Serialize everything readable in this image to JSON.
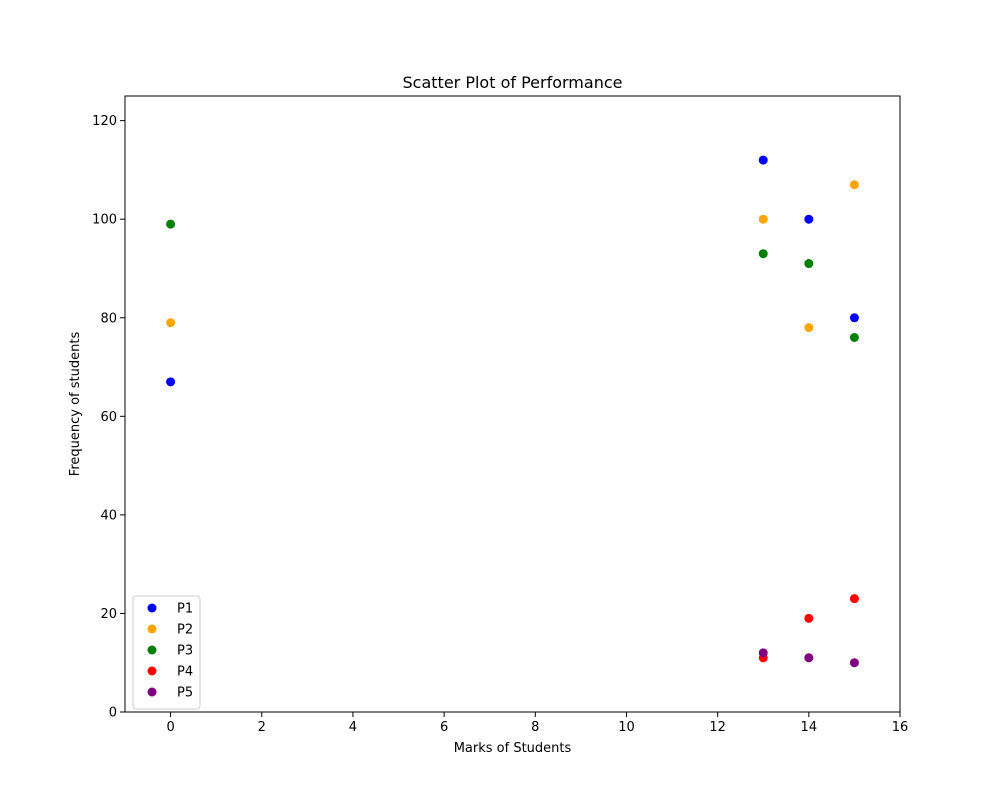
{
  "chart_data": {
    "type": "scatter",
    "title": "Scatter Plot of Performance",
    "xlabel": "Marks of Students",
    "ylabel": "Frequency of students",
    "xlim": [
      -1,
      16
    ],
    "ylim": [
      0,
      125
    ],
    "xticks": [
      0,
      2,
      4,
      6,
      8,
      10,
      12,
      14,
      16
    ],
    "yticks": [
      0,
      20,
      40,
      60,
      80,
      100,
      120
    ],
    "grid": false,
    "legend_position": "lower-left",
    "series": [
      {
        "name": "P1",
        "color": "#0000ff",
        "x": [
          0,
          13,
          14,
          15
        ],
        "y": [
          67,
          112,
          100,
          80
        ]
      },
      {
        "name": "P2",
        "color": "#ffa500",
        "x": [
          0,
          13,
          14,
          15
        ],
        "y": [
          79,
          100,
          78,
          107
        ]
      },
      {
        "name": "P3",
        "color": "#008000",
        "x": [
          0,
          13,
          14,
          15
        ],
        "y": [
          99,
          93,
          91,
          76
        ]
      },
      {
        "name": "P4",
        "color": "#ff0000",
        "x": [
          13,
          14,
          15
        ],
        "y": [
          11,
          19,
          23
        ]
      },
      {
        "name": "P5",
        "color": "#800080",
        "x": [
          13,
          14,
          15
        ],
        "y": [
          12,
          11,
          10
        ]
      }
    ]
  }
}
